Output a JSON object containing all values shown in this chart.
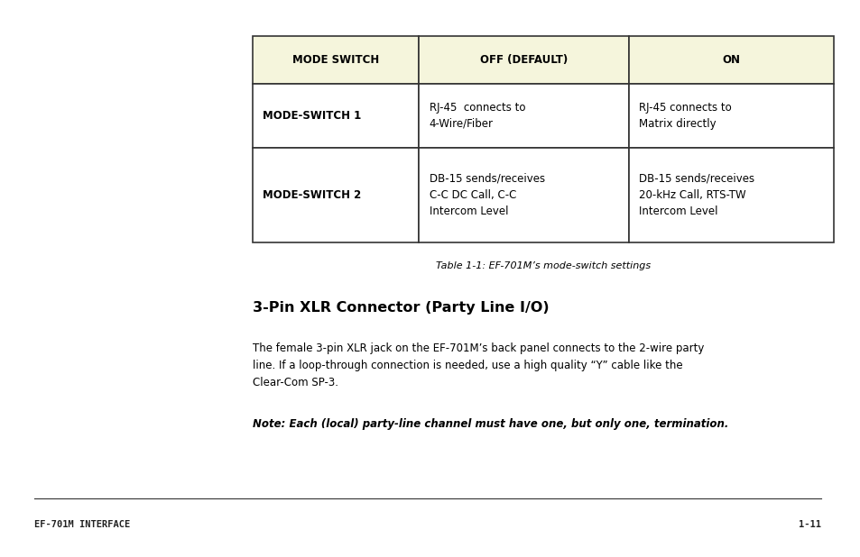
{
  "bg_color": "#ffffff",
  "table_header_bg": "#f5f5dc",
  "table_border_color": "#333333",
  "col_headers": [
    "MODE SWITCH",
    "OFF (DEFAULT)",
    "ON"
  ],
  "row1_col1": "MODE-SWITCH 1",
  "row1_col2": "RJ-45  connects to\n4-Wire/Fiber",
  "row1_col3": "RJ-45 connects to\nMatrix directly",
  "row2_col1": "MODE-SWITCH 2",
  "row2_col2": "DB-15 sends/receives\nC-C DC Call, C-C\nIntercom Level",
  "row2_col3": "DB-15 sends/receives\n20-kHz Call, RTS-TW\nIntercom Level",
  "table_caption": "Table 1-1: EF-701M’s mode-switch settings",
  "section_title": "3-Pin XLR Connector (Party Line I/O)",
  "body_text": "The female 3-pin XLR jack on the EF-701M’s back panel connects to the 2-wire party\nline. If a loop-through connection is needed, use a high quality “Y” cable like the\nClear-Com SP-3.",
  "note_text": "Note: Each (local) party-line channel must have one, but only one, termination.",
  "footer_left": "EF-701M INTERFACE",
  "footer_right": "1-11"
}
